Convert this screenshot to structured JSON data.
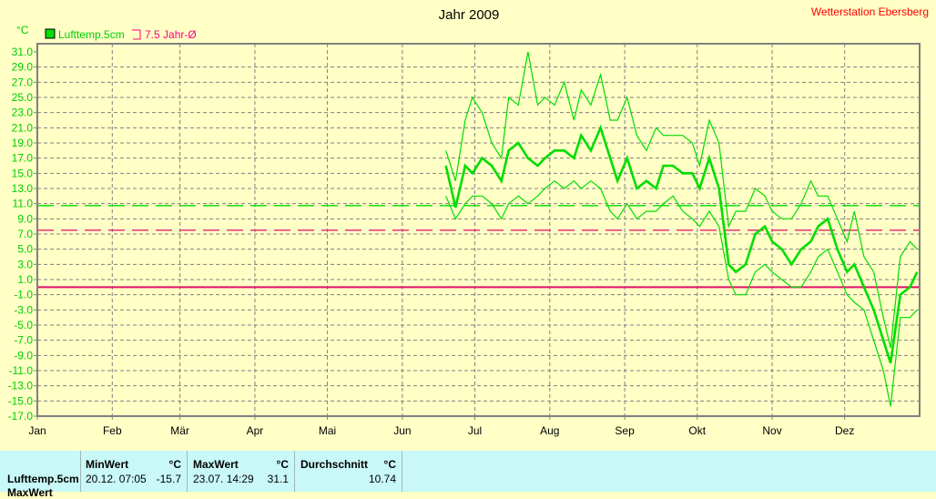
{
  "chart_data": {
    "type": "line",
    "title": "Jahr 2009",
    "station": "Wetterstation Ebersberg",
    "ylabel": "°C",
    "ylim": [
      -17,
      31
    ],
    "yticks": [
      "31.0",
      "29.0",
      "27.0",
      "25.0",
      "23.0",
      "21.0",
      "19.0",
      "17.0",
      "15.0",
      "13.0",
      "11.0",
      "9.0",
      "7.0",
      "5.0",
      "3.0",
      "1.0",
      "-1.0",
      "-3.0",
      "-5.0",
      "-7.0",
      "-9.0",
      "-11.0",
      "-13.0",
      "-15.0",
      "-17.0"
    ],
    "xlim": [
      0,
      365
    ],
    "months": [
      {
        "label": "Jan",
        "day": 0
      },
      {
        "label": "Feb",
        "day": 31
      },
      {
        "label": "Mär",
        "day": 59
      },
      {
        "label": "Apr",
        "day": 90
      },
      {
        "label": "Mai",
        "day": 120
      },
      {
        "label": "Jun",
        "day": 151
      },
      {
        "label": "Jul",
        "day": 181
      },
      {
        "label": "Aug",
        "day": 212
      },
      {
        "label": "Sep",
        "day": 243
      },
      {
        "label": "Okt",
        "day": 273
      },
      {
        "label": "Nov",
        "day": 304
      },
      {
        "label": "Dez",
        "day": 334
      }
    ],
    "legend": [
      {
        "name": "Lufttemp.5cm",
        "color": "#00dd00"
      },
      {
        "name": "7.5 Jahr-Ø",
        "color": "#ff0080"
      }
    ],
    "reference_lines": [
      {
        "name": "average",
        "value": 10.74,
        "color": "#00dd00",
        "style": "dashed"
      },
      {
        "name": "7.5 Jahr-Ø",
        "value": 7.5,
        "color": "#e02070",
        "style": "dashed"
      },
      {
        "name": "zero",
        "value": 0,
        "color": "#e0106a",
        "style": "solid"
      }
    ],
    "x": [
      169,
      173,
      177,
      180,
      184,
      188,
      192,
      195,
      199,
      203,
      207,
      210,
      214,
      218,
      222,
      225,
      229,
      233,
      237,
      240,
      244,
      248,
      252,
      256,
      259,
      263,
      267,
      271,
      274,
      278,
      282,
      286,
      289,
      293,
      297,
      301,
      304,
      308,
      312,
      316,
      320,
      323,
      327,
      331,
      335,
      338,
      342,
      346,
      350,
      353,
      357,
      361,
      364
    ],
    "series": [
      {
        "name": "mean",
        "values": [
          16,
          10.5,
          16,
          15,
          17,
          16,
          14,
          18,
          19,
          17,
          16,
          17,
          18,
          18,
          17,
          20,
          18,
          21,
          17,
          14,
          17,
          13,
          14,
          13,
          16,
          16,
          15,
          15,
          13,
          17,
          13,
          3,
          2,
          3,
          7,
          8,
          6,
          5,
          3,
          5,
          6,
          8,
          9,
          5,
          2,
          3,
          0,
          -3,
          -7,
          -10,
          -1,
          0,
          2
        ]
      },
      {
        "name": "max",
        "values": [
          18,
          14,
          22,
          25,
          23,
          19,
          17,
          25,
          24,
          31,
          24,
          25,
          24,
          27,
          22,
          26,
          24,
          28,
          22,
          22,
          25,
          20,
          18,
          21,
          20,
          20,
          20,
          19,
          16,
          22,
          19,
          8,
          10,
          10,
          13,
          12,
          10,
          9,
          9,
          11,
          14,
          12,
          12,
          9,
          6,
          10,
          4,
          2,
          -4,
          -8,
          4,
          6,
          5
        ]
      },
      {
        "name": "min",
        "values": [
          12,
          9,
          11,
          12,
          12,
          11,
          9,
          11,
          12,
          11,
          12,
          13,
          14,
          13,
          14,
          13,
          14,
          13,
          10,
          9,
          11,
          9,
          10,
          10,
          11,
          12,
          10,
          9,
          8,
          10,
          8,
          1,
          -1,
          -1,
          2,
          3,
          2,
          1,
          0,
          0,
          2,
          4,
          5,
          2,
          -1,
          -2,
          -3,
          -7,
          -11,
          -15.7,
          -4,
          -4,
          -3
        ]
      }
    ]
  },
  "footer": {
    "row_label": "Lufttemp.5cm",
    "row_label2": "MaxWert",
    "min": {
      "header": "MinWert",
      "unit": "°C",
      "date": "20.12.  07:05",
      "value": "-15.7"
    },
    "max": {
      "header": "MaxWert",
      "unit": "°C",
      "date": "23.07.  14:29",
      "value": "31.1"
    },
    "avg": {
      "header": "Durchschnitt",
      "unit": "°C",
      "value": "10.74"
    }
  }
}
